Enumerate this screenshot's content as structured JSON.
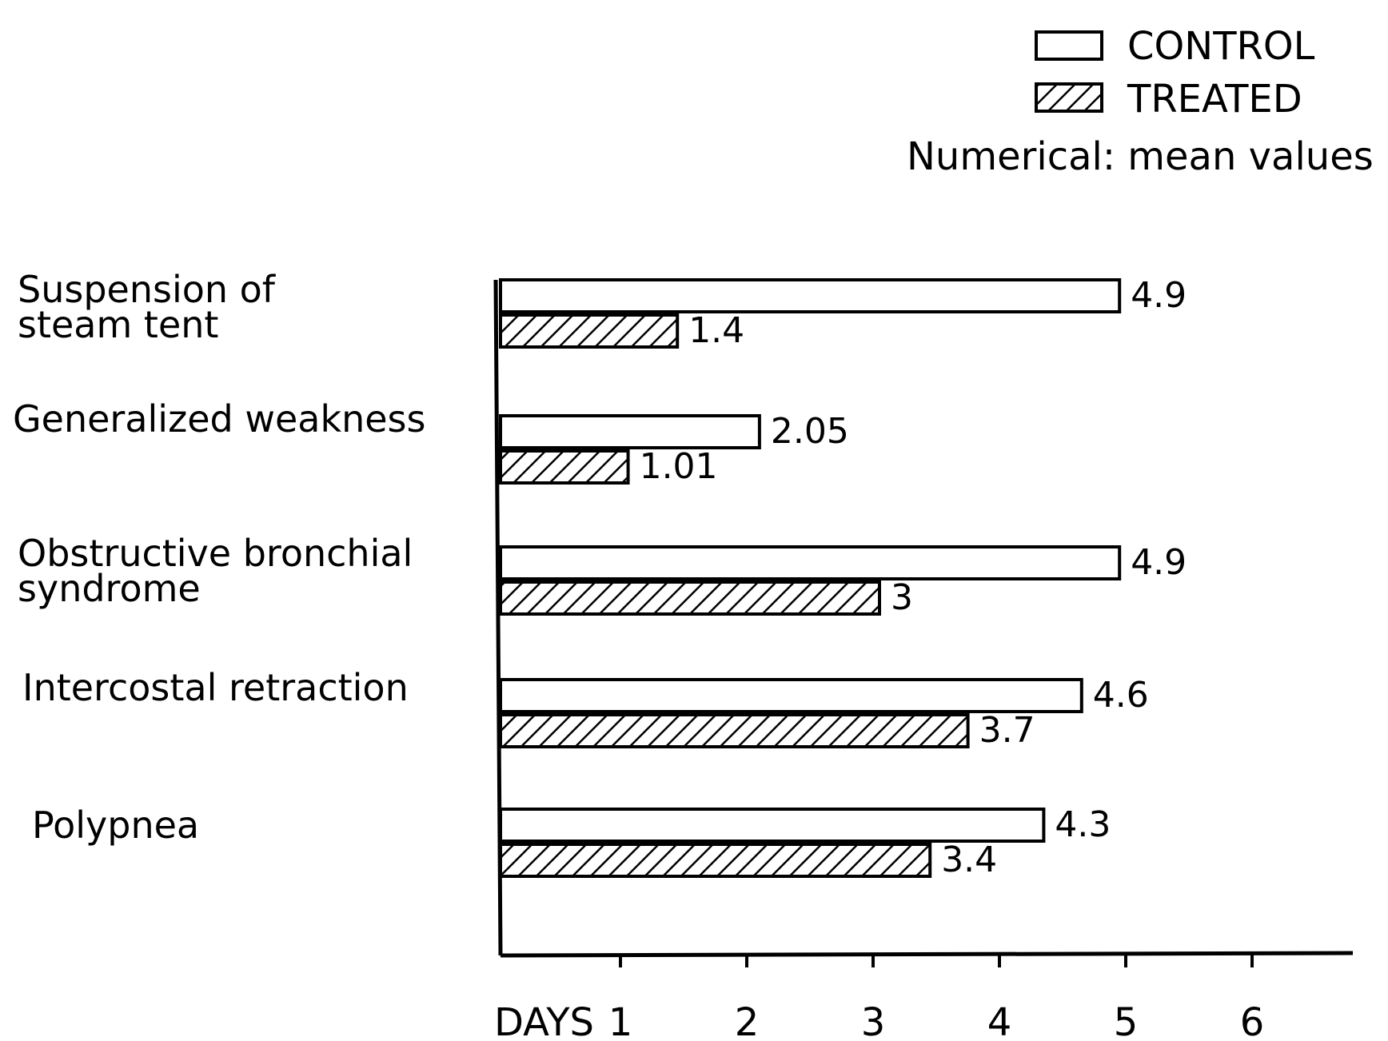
{
  "legend": {
    "control": "CONTROL",
    "treated": "TREATED",
    "note": "Numerical: mean values"
  },
  "chart_data": {
    "type": "bar",
    "orientation": "horizontal",
    "categories": [
      [
        "Suspension of",
        "steam tent"
      ],
      [
        "Generalized weakness"
      ],
      [
        "Obstructive bronchial",
        "syndrome"
      ],
      [
        "Intercostal retraction"
      ],
      [
        "Polypnea"
      ]
    ],
    "series": [
      {
        "name": "CONTROL",
        "fill": "none",
        "values": [
          4.9,
          2.05,
          4.9,
          4.6,
          4.3
        ],
        "labels": [
          "4.9",
          "2.05",
          "4.9",
          "4.6",
          "4.3"
        ]
      },
      {
        "name": "TREATED",
        "fill": "hatched",
        "values": [
          1.4,
          1.01,
          3,
          3.7,
          3.4
        ],
        "labels": [
          "1.4",
          "1.01",
          "3",
          "3.7",
          "3.4"
        ]
      }
    ],
    "x_axis_title": "DAYS",
    "x_ticks": [
      "1",
      "2",
      "3",
      "4",
      "5",
      "6"
    ],
    "xlim": [
      0,
      6
    ],
    "grid": false,
    "legend_position": "top-right"
  }
}
